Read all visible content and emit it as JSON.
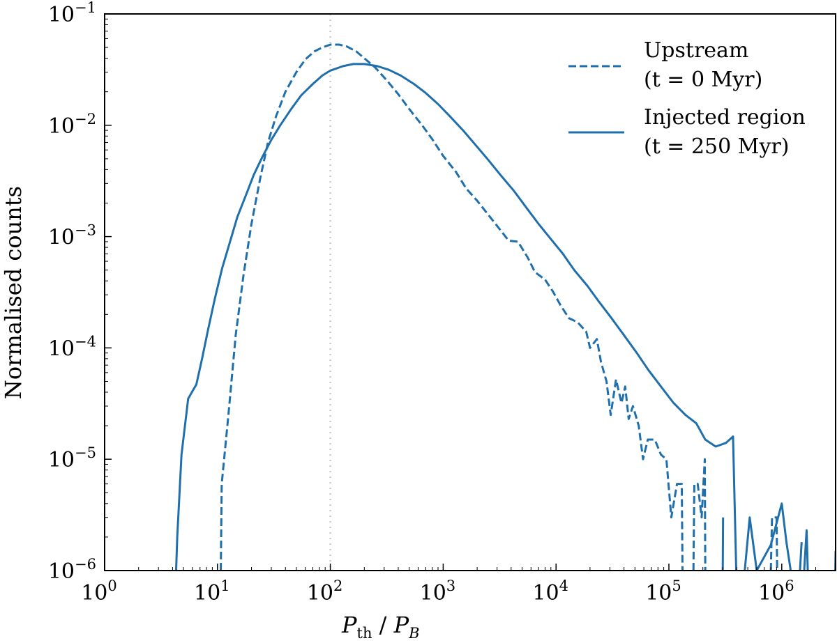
{
  "chart_data": {
    "type": "line",
    "xscale": "log",
    "yscale": "log",
    "xlim": [
      1,
      3000000
    ],
    "ylim": [
      1e-06,
      0.1
    ],
    "xlabel": {
      "main": "P",
      "sub": "th",
      "sep": " / ",
      "main2": "P",
      "sub2": "B"
    },
    "ylabel": "Normalised counts",
    "x_ticks": [
      {
        "value": 1,
        "base": "10",
        "exp": "0"
      },
      {
        "value": 10,
        "base": "10",
        "exp": "1"
      },
      {
        "value": 100,
        "base": "10",
        "exp": "2"
      },
      {
        "value": 1000,
        "base": "10",
        "exp": "3"
      },
      {
        "value": 10000,
        "base": "10",
        "exp": "4"
      },
      {
        "value": 100000,
        "base": "10",
        "exp": "5"
      },
      {
        "value": 1000000,
        "base": "10",
        "exp": "6"
      }
    ],
    "y_ticks": [
      {
        "value": 1e-06,
        "base": "10",
        "exp": "−6"
      },
      {
        "value": 1e-05,
        "base": "10",
        "exp": "−5"
      },
      {
        "value": 0.0001,
        "base": "10",
        "exp": "−4"
      },
      {
        "value": 0.001,
        "base": "10",
        "exp": "−3"
      },
      {
        "value": 0.01,
        "base": "10",
        "exp": "−2"
      },
      {
        "value": 0.1,
        "base": "10",
        "exp": "−1"
      }
    ],
    "reference_line": {
      "x": 100,
      "style": "dotted",
      "color": "#cccccc"
    },
    "legend_position": "top-right",
    "line_color": "#1f6fad",
    "series": [
      {
        "name": "Upstream",
        "name_line2": "(t = 0 Myr)",
        "style": "dashed",
        "points": [
          [
            10.7,
            1e-06
          ],
          [
            10.9,
            6e-06
          ],
          [
            12.5,
            2.5e-05
          ],
          [
            14.5,
            0.00013
          ],
          [
            17,
            0.00045
          ],
          [
            20,
            0.0013
          ],
          [
            24,
            0.0034
          ],
          [
            28,
            0.007
          ],
          [
            33,
            0.012
          ],
          [
            40,
            0.02
          ],
          [
            50,
            0.03
          ],
          [
            60,
            0.039
          ],
          [
            72,
            0.046
          ],
          [
            85,
            0.05
          ],
          [
            100,
            0.053
          ],
          [
            120,
            0.053
          ],
          [
            140,
            0.051
          ],
          [
            170,
            0.046
          ],
          [
            200,
            0.04
          ],
          [
            250,
            0.033
          ],
          [
            320,
            0.025
          ],
          [
            400,
            0.019
          ],
          [
            500,
            0.014
          ],
          [
            650,
            0.01
          ],
          [
            800,
            0.0075
          ],
          [
            1000,
            0.0053
          ],
          [
            1300,
            0.0038
          ],
          [
            1600,
            0.0027
          ],
          [
            2000,
            0.0021
          ],
          [
            2600,
            0.0015
          ],
          [
            3200,
            0.00115
          ],
          [
            3800,
            0.00092
          ],
          [
            4600,
            0.0009
          ],
          [
            5600,
            0.00065
          ],
          [
            6500,
            0.00048
          ],
          [
            8000,
            0.00041
          ],
          [
            9400,
            0.00032
          ],
          [
            11000,
            0.00024
          ],
          [
            13000,
            0.000185
          ],
          [
            15500,
            0.00017
          ],
          [
            18500,
            0.00014
          ],
          [
            20000,
            0.0001
          ],
          [
            23000,
            0.00012
          ],
          [
            25000,
            7.5e-05
          ],
          [
            28000,
            5e-05
          ],
          [
            30500,
            2.5e-05
          ],
          [
            34000,
            5.2e-05
          ],
          [
            38000,
            3.2e-05
          ],
          [
            41000,
            4.5e-05
          ],
          [
            44000,
            2.3e-05
          ],
          [
            48000,
            3e-05
          ],
          [
            54000,
            2e-05
          ],
          [
            59000,
            1e-05
          ],
          [
            65000,
            1.5e-05
          ],
          [
            75000,
            1.5e-05
          ],
          [
            85000,
            1.1e-05
          ],
          [
            95000,
            1e-05
          ],
          [
            105000,
            3e-06
          ],
          [
            118000,
            6e-06
          ],
          [
            130000,
            6e-06
          ],
          [
            132000,
            1e-06
          ],
          [
            null,
            null
          ],
          [
            165000,
            1e-06
          ],
          [
            168000,
            6e-06
          ],
          [
            180000,
            6e-06
          ],
          [
            195000,
            3e-06
          ],
          [
            208000,
            1e-05
          ],
          [
            210000,
            1e-06
          ],
          [
            null,
            null
          ],
          [
            800000,
            1e-06
          ],
          [
            820000,
            3e-06
          ],
          [
            900000,
            3e-06
          ],
          [
            910000,
            1e-06
          ]
        ]
      },
      {
        "name": "Injected region",
        "name_line2": "(t = 250 Myr)",
        "style": "solid",
        "points": [
          [
            4.3,
            1e-06
          ],
          [
            4.4,
            2e-06
          ],
          [
            4.8,
            1.1e-05
          ],
          [
            5.5,
            3.5e-05
          ],
          [
            6.5,
            4.7e-05
          ],
          [
            7.3,
            8e-05
          ],
          [
            8.3,
            0.00015
          ],
          [
            9.5,
            0.00028
          ],
          [
            11,
            0.00052
          ],
          [
            13,
            0.00092
          ],
          [
            15,
            0.0015
          ],
          [
            18,
            0.0024
          ],
          [
            21,
            0.0036
          ],
          [
            25,
            0.0052
          ],
          [
            30,
            0.0074
          ],
          [
            36,
            0.01
          ],
          [
            45,
            0.014
          ],
          [
            55,
            0.0185
          ],
          [
            70,
            0.0235
          ],
          [
            85,
            0.028
          ],
          [
            100,
            0.031
          ],
          [
            130,
            0.034
          ],
          [
            160,
            0.0355
          ],
          [
            200,
            0.0355
          ],
          [
            260,
            0.034
          ],
          [
            330,
            0.0315
          ],
          [
            420,
            0.028
          ],
          [
            550,
            0.0235
          ],
          [
            700,
            0.0195
          ],
          [
            900,
            0.0155
          ],
          [
            1150,
            0.012
          ],
          [
            1500,
            0.009
          ],
          [
            1900,
            0.0068
          ],
          [
            2500,
            0.0049
          ],
          [
            3200,
            0.0036
          ],
          [
            4200,
            0.0026
          ],
          [
            5500,
            0.0018
          ],
          [
            7000,
            0.0013
          ],
          [
            9000,
            0.00095
          ],
          [
            11500,
            0.0007
          ],
          [
            14500,
            0.0005
          ],
          [
            19000,
            0.00036
          ],
          [
            24000,
            0.00026
          ],
          [
            31000,
            0.000185
          ],
          [
            40000,
            0.00013
          ],
          [
            52000,
            9e-05
          ],
          [
            66000,
            6.3e-05
          ],
          [
            85000,
            4.5e-05
          ],
          [
            110000,
            3.2e-05
          ],
          [
            140000,
            2.5e-05
          ],
          [
            175000,
            2.1e-05
          ],
          [
            210000,
            1.5e-05
          ],
          [
            260000,
            1.3e-05
          ],
          [
            320000,
            1.4e-05
          ],
          [
            370000,
            1.6e-05
          ],
          [
            395000,
            1e-06
          ],
          [
            null,
            null
          ],
          [
            300000,
            1e-06
          ],
          [
            302000,
            3e-06
          ],
          [
            null,
            null
          ],
          [
            470000,
            1e-06
          ],
          [
            520000,
            3e-06
          ],
          [
            600000,
            1e-06
          ],
          [
            800000,
            1.7e-06
          ],
          [
            1000000,
            4e-06
          ],
          [
            1100000,
            1.8e-06
          ],
          [
            1200000,
            1e-06
          ],
          [
            null,
            null
          ],
          [
            1450000,
            1e-06
          ],
          [
            1500000,
            1.8e-06
          ],
          [
            null,
            null
          ],
          [
            1580000,
            1e-06
          ],
          [
            1660000,
            2.3e-06
          ],
          [
            1700000,
            1e-06
          ],
          [
            null,
            null
          ],
          [
            2980000,
            1e-06
          ],
          [
            3000000,
            1.5e-06
          ]
        ]
      }
    ]
  }
}
